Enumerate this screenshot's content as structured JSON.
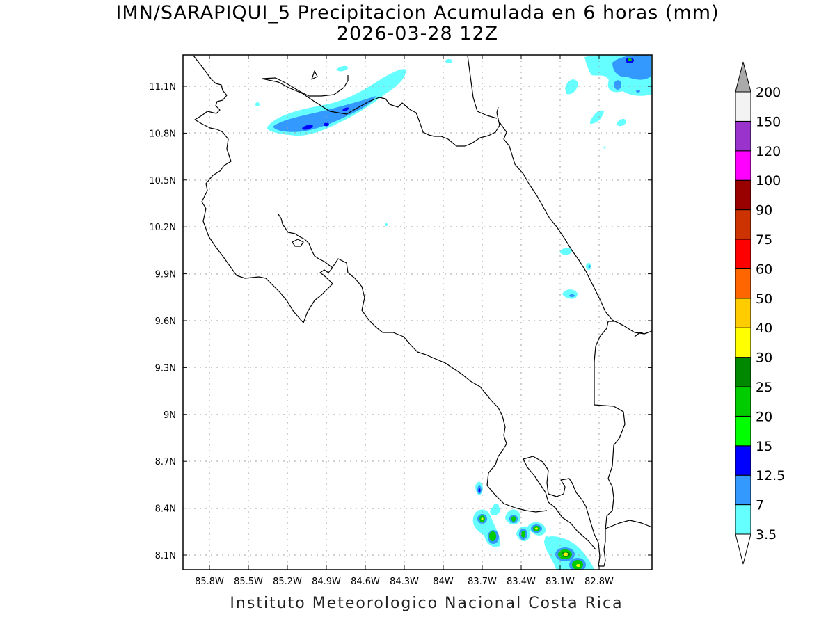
{
  "title": {
    "line1": "IMN/SARAPIQUI_5 Precipitacion Acumulada en 6 horas (mm)",
    "line2": "2026-03-28 12Z"
  },
  "footer": "Instituto Meteorologico Nacional Costa Rica",
  "map": {
    "lon_ticks": [
      "85.8W",
      "85.5W",
      "85.2W",
      "84.9W",
      "84.6W",
      "84.3W",
      "84W",
      "83.7W",
      "83.4W",
      "83.1W",
      "82.8W"
    ],
    "lat_ticks": [
      "11.1N",
      "10.8N",
      "10.5N",
      "10.2N",
      "9.9N",
      "9.6N",
      "9.3N",
      "9N",
      "8.7N",
      "8.4N",
      "8.1N"
    ]
  },
  "colorbar": {
    "labels": [
      "3.5",
      "7",
      "12.5",
      "15",
      "20",
      "25",
      "30",
      "40",
      "50",
      "60",
      "75",
      "90",
      "100",
      "120",
      "150",
      "200"
    ],
    "colors": [
      "#66ffff",
      "#3399ff",
      "#0000ff",
      "#00ff00",
      "#00cc00",
      "#008800",
      "#ffff00",
      "#ffcc00",
      "#ff6600",
      "#ff0000",
      "#cc3300",
      "#990000",
      "#ff00ff",
      "#9933cc",
      "#f3f3f3"
    ],
    "top_arrow_color": "#aaaaaa",
    "bottom_arrow_color": "#ffffff"
  }
}
